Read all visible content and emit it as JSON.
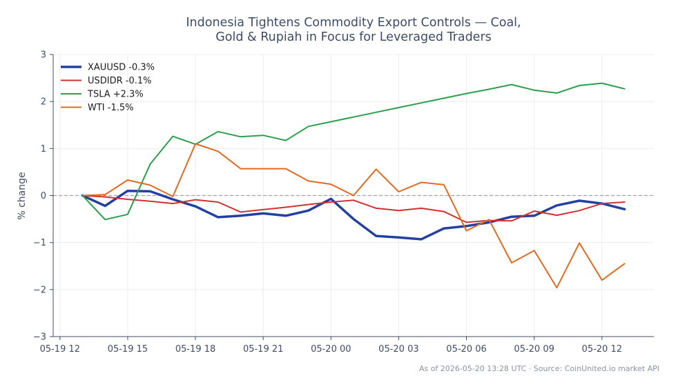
{
  "chart_data": {
    "type": "line",
    "title_lines": [
      "Indonesia Tightens Commodity Export Controls — Coal,",
      "Gold & Rupiah in Focus for Leveraged Traders"
    ],
    "ylabel": "% change",
    "xlabel": "",
    "ylim": [
      -3,
      3
    ],
    "yticks": [
      -3,
      -2,
      -1,
      0,
      1,
      2,
      3
    ],
    "xlim": [
      -0.3,
      26.3
    ],
    "xticks": [
      {
        "at": 0,
        "label": "05-19 12"
      },
      {
        "at": 3,
        "label": "05-19 15"
      },
      {
        "at": 6,
        "label": "05-19 18"
      },
      {
        "at": 9,
        "label": "05-19 21"
      },
      {
        "at": 12,
        "label": "05-20 00"
      },
      {
        "at": 15,
        "label": "05-20 03"
      },
      {
        "at": 18,
        "label": "05-20 06"
      },
      {
        "at": 21,
        "label": "05-20 09"
      },
      {
        "at": 24,
        "label": "05-20 12"
      }
    ],
    "x": [
      1,
      2,
      3,
      4,
      5,
      6,
      7,
      8,
      9,
      10,
      11,
      12,
      13,
      14,
      15,
      16,
      17,
      18,
      19,
      20,
      21,
      22,
      23,
      24,
      25
    ],
    "zero_line": true,
    "grid": true,
    "legend_position": "top-left",
    "series": [
      {
        "name": "XAUUSD -0.3%",
        "color": "#2340a0",
        "width": 3.5,
        "values": [
          0.0,
          -0.22,
          0.1,
          0.09,
          -0.08,
          -0.23,
          -0.46,
          -0.43,
          -0.38,
          -0.43,
          -0.32,
          -0.07,
          -0.5,
          -0.86,
          -0.89,
          -0.93,
          -0.7,
          -0.65,
          -0.57,
          -0.45,
          -0.43,
          -0.21,
          -0.11,
          -0.17,
          -0.29
        ]
      },
      {
        "name": "USDIDR -0.1%",
        "color": "#d03030",
        "width": 2,
        "values": [
          0.0,
          -0.03,
          -0.08,
          -0.12,
          -0.17,
          -0.09,
          -0.14,
          -0.35,
          -0.3,
          -0.25,
          -0.19,
          -0.14,
          -0.1,
          -0.27,
          -0.32,
          -0.27,
          -0.34,
          -0.57,
          -0.53,
          -0.54,
          -0.33,
          -0.42,
          -0.32,
          -0.17,
          -0.14
        ]
      },
      {
        "name": "TSLA +2.3%",
        "color": "#2a9e4a",
        "width": 2,
        "values": [
          0.0,
          -0.51,
          -0.4,
          0.67,
          1.26,
          1.09,
          1.36,
          1.25,
          1.28,
          1.17,
          1.47,
          1.57,
          1.67,
          1.77,
          1.87,
          1.97,
          2.07,
          2.17,
          2.26,
          2.36,
          2.24,
          2.18,
          2.34,
          2.39,
          2.27
        ]
      },
      {
        "name": "WTI -1.5%",
        "color": "#e06a20",
        "width": 2,
        "values": [
          0.0,
          0.02,
          0.33,
          0.22,
          -0.02,
          1.1,
          0.94,
          0.57,
          0.57,
          0.57,
          0.31,
          0.24,
          0.0,
          0.56,
          0.08,
          0.28,
          0.23,
          -0.75,
          -0.51,
          -1.43,
          -1.17,
          -1.96,
          -1.01,
          -1.8,
          -1.45
        ]
      }
    ]
  },
  "footer": "As of 2026-05-20 13:28 UTC · Source: CoinUnited.io market API"
}
